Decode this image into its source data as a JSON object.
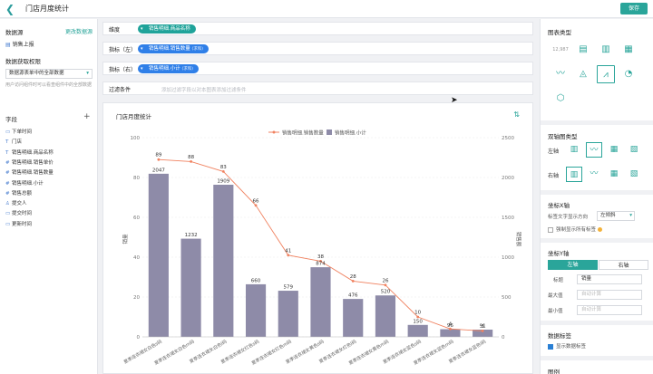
{
  "topbar": {
    "title": "门店月度统计",
    "save_label": "保存"
  },
  "left": {
    "datasource_label": "数据源",
    "datasource_change": "更改数据源",
    "datasource_item": "销售上报",
    "permission_label": "数据获取权限",
    "permission_value": "数据源表单中的全部数据",
    "permission_tip": "用户访问组件时可以看查组件中的全部数据",
    "fields_label": "字段",
    "fields": [
      {
        "icon": "calendar-icon",
        "glyph": "▭",
        "label": "下单时间"
      },
      {
        "icon": "text-icon",
        "glyph": "T",
        "label": "门店"
      },
      {
        "icon": "text-icon",
        "glyph": "T",
        "label": "销售明细.商品名称"
      },
      {
        "icon": "number-icon",
        "glyph": "#",
        "label": "销售明细.销售单价"
      },
      {
        "icon": "number-icon",
        "glyph": "#",
        "label": "销售明细.销售数量"
      },
      {
        "icon": "number-icon",
        "glyph": "#",
        "label": "销售明细.小计"
      },
      {
        "icon": "number-icon",
        "glyph": "#",
        "label": "销售总额"
      },
      {
        "icon": "user-icon",
        "glyph": "♙",
        "label": "提交人"
      },
      {
        "icon": "calendar-icon",
        "glyph": "▭",
        "label": "提交时间"
      },
      {
        "icon": "calendar-icon",
        "glyph": "▭",
        "label": "更新时间"
      }
    ]
  },
  "config": {
    "dimension_label": "维度",
    "dimension_pill": "销售明细.商品名称",
    "metric_left_label": "指标（左）",
    "metric_left_pill": "销售明细.销售数量",
    "metric_left_tag": "(求和)",
    "metric_right_label": "指标（右）",
    "metric_right_pill": "销售明细.小计",
    "metric_right_tag": "(求和)",
    "filter_label": "过滤条件",
    "filter_placeholder": "添加过滤字段以对本图表添加过滤条件"
  },
  "chart": {
    "card_title": "门店月度统计",
    "legend_line": "销售明细.销售数量",
    "legend_bar": "销售明细.小计",
    "left_axis_title": "销量",
    "right_axis_title": "销售额",
    "colors": {
      "bar": "#8e8ba8",
      "line": "#f08260",
      "teal": "#2aa59a"
    }
  },
  "chart_data": {
    "type": "bar",
    "categories": [
      "夏季连衣裙女白色s码",
      "夏季连衣裙女白色m码",
      "夏季连衣裙女白色l码",
      "夏季连衣裙女红色s码",
      "夏季连衣裙女红色m码",
      "夏季连衣裙女黄色s码",
      "夏季连衣裙女红色l码",
      "夏季连衣裙女黄色m码",
      "夏季连衣裙女蓝色s码",
      "夏季连衣裙女蓝色m码",
      "夏季连衣裙女蓝色l码"
    ],
    "series": [
      {
        "name": "销售明细.小计",
        "type": "bar",
        "axis": "right",
        "values": [
          2047,
          1232,
          1909,
          660,
          579,
          874,
          476,
          520,
          150,
          96,
          91
        ]
      },
      {
        "name": "销售明细.销售数量",
        "type": "line",
        "axis": "left",
        "values": [
          89,
          88,
          83,
          66,
          41,
          38,
          28,
          26,
          10,
          4,
          3
        ]
      }
    ],
    "bar_labels": [
      "2047",
      "1232",
      "1909",
      "660",
      "579",
      "874",
      "476",
      "520",
      "150",
      "96",
      "91"
    ],
    "line_labels": [
      "89",
      "88",
      "83",
      "66",
      "41",
      "38",
      "28",
      "26",
      "10",
      "4",
      "3"
    ],
    "left_ticks": [
      "0",
      "20",
      "40",
      "60",
      "80",
      "100"
    ],
    "right_ticks": [
      "0",
      "500",
      "1000",
      "1500",
      "2000",
      "2500"
    ],
    "ylim_left": [
      0,
      100
    ],
    "ylim_right": [
      0,
      2500
    ],
    "ylabel_left": "销量",
    "ylabel_right": "销售额",
    "legend_position": "top-center",
    "grid": true
  },
  "right": {
    "chart_type_label": "图表类型",
    "chart_types": [
      {
        "name": "number-chart-icon",
        "glyph": "12,987"
      },
      {
        "name": "table-chart-icon",
        "glyph": "▤"
      },
      {
        "name": "bar-chart-icon",
        "glyph": "▥"
      },
      {
        "name": "grouped-bar-chart-icon",
        "glyph": "▦"
      },
      {
        "name": "line-chart-icon",
        "glyph": "〰"
      },
      {
        "name": "area-chart-icon",
        "glyph": "◬"
      },
      {
        "name": "dual-axis-chart-icon",
        "glyph": "⩘"
      },
      {
        "name": "pie-chart-icon",
        "glyph": "◔"
      },
      {
        "name": "radar-chart-icon",
        "glyph": "⬡"
      }
    ],
    "dual_axis_label": "双轴图类型",
    "left_axis_label": "左轴",
    "right_axis_label": "右轴",
    "x_axis_section": "坐标X轴",
    "label_direction_label": "标签文字显示方向",
    "label_direction_value": "左倾斜",
    "force_show_labels": "强制显示所有标签",
    "y_axis_section": "坐标Y轴",
    "seg_left": "左轴",
    "seg_right": "右轴",
    "title_label": "标题",
    "title_value": "销量",
    "max_label": "最大值",
    "max_placeholder": "自动计算",
    "min_label": "最小值",
    "min_placeholder": "自动计算",
    "data_label_section": "数据标签",
    "show_data_labels": "显示数据标签",
    "legend_section": "图例"
  }
}
